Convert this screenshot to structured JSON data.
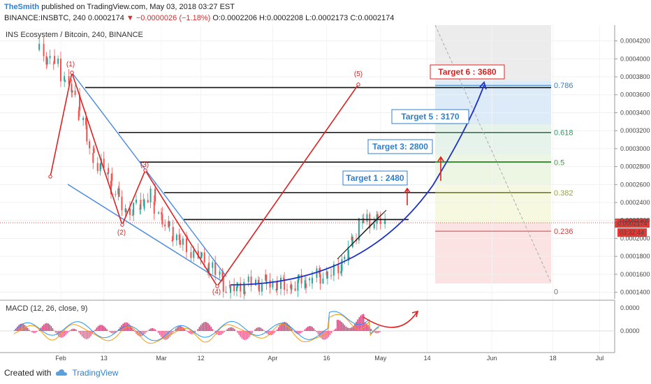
{
  "header": {
    "author": "TheSmith",
    "published": "published on TradingView.com, May 03, 2018 03:27 EST"
  },
  "quote": {
    "symbol": "BINANCE:INSBTC, 240",
    "last": "0.0002174",
    "change": "−0.0000026 (−1.18%)",
    "open": "O:0.0002206",
    "high": "H:0.0002208",
    "low": "L:0.0002173",
    "close": "C:0.0002174"
  },
  "legend": "INS Ecosystem / Bitcoin, 240, BINANCE",
  "macd_label": "MACD (12, 26, close, 9)",
  "footer": {
    "created_with": "Created with",
    "brand": "TradingView"
  },
  "colors": {
    "up": "#26a69a",
    "down": "#ef5350",
    "fib_blue": "#2f7fd1",
    "red_path": "#e02020",
    "curve": "#1b2fc9",
    "wedge": "#4a8be0"
  },
  "chart_data": {
    "type": "candlestick",
    "title": "INS Ecosystem / Bitcoin, 240, BINANCE",
    "y_axis_ticks": [
      "0.0004200",
      "0.0004000",
      "0.0003800",
      "0.0003600",
      "0.0003400",
      "0.0003200",
      "0.0003000",
      "0.0002800",
      "0.0002600",
      "0.0002400",
      "0.0002200",
      "0.0002000",
      "0.0001800",
      "0.0001600",
      "0.0001400"
    ],
    "y_axis_values": [
      0.00042,
      0.0004,
      0.00038,
      0.00036,
      0.00034,
      0.00032,
      0.0003,
      0.00028,
      0.00026,
      0.00024,
      0.00022,
      0.0002,
      0.00018,
      0.00016,
      0.00014
    ],
    "ylim": [
      0.000133,
      0.000422
    ],
    "x_axis_ticks": [
      "Feb",
      "13",
      "Mar",
      "12",
      "Apr",
      "16",
      "May",
      "14",
      "Jun",
      "18",
      "Jul"
    ],
    "last_price": "0.0002174",
    "countdown": "03:32:44",
    "fibonacci": [
      {
        "level": "0.786",
        "price": 0.0003705,
        "color": "#2f7fd1"
      },
      {
        "level": "0.618",
        "price": 0.000318,
        "color": "#2a9d5c"
      },
      {
        "level": "0.5",
        "price": 0.0002848,
        "color": "#3aa03a"
      },
      {
        "level": "0.382",
        "price": 0.000251,
        "color": "#9aa81e"
      },
      {
        "level": "0.236",
        "price": 0.000208,
        "color": "#d04040"
      },
      {
        "level": "0",
        "price": 0.000141,
        "color": "#777777"
      }
    ],
    "targets": [
      {
        "label": "Target 1 : 2480",
        "price": 0.000248
      },
      {
        "label": "Target 3: 2800",
        "price": 0.00028
      },
      {
        "label": "Target 5 : 3170",
        "price": 0.000317
      },
      {
        "label": "Target 6 : 3680",
        "price": 0.000368
      }
    ],
    "waves": [
      {
        "label": "(1)",
        "date": "2018-02-06",
        "price": 0.000374
      },
      {
        "label": "(2)",
        "date": "2018-02-19",
        "price": 0.000204
      },
      {
        "label": "(3)",
        "date": "2018-02-26",
        "price": 0.000262
      },
      {
        "label": "(4)",
        "date": "2018-03-20",
        "price": 0.000138
      },
      {
        "label": "(5)",
        "date": "2018-04-15",
        "price": 0.000366
      }
    ],
    "resistance_lines": [
      0.000368,
      0.000318,
      0.000285,
      0.000251,
      0.000221
    ],
    "macd": {
      "name": "MACD (12, 26, close, 9)",
      "axis_ticks": [
        "0.0000",
        "0.0000"
      ]
    }
  }
}
